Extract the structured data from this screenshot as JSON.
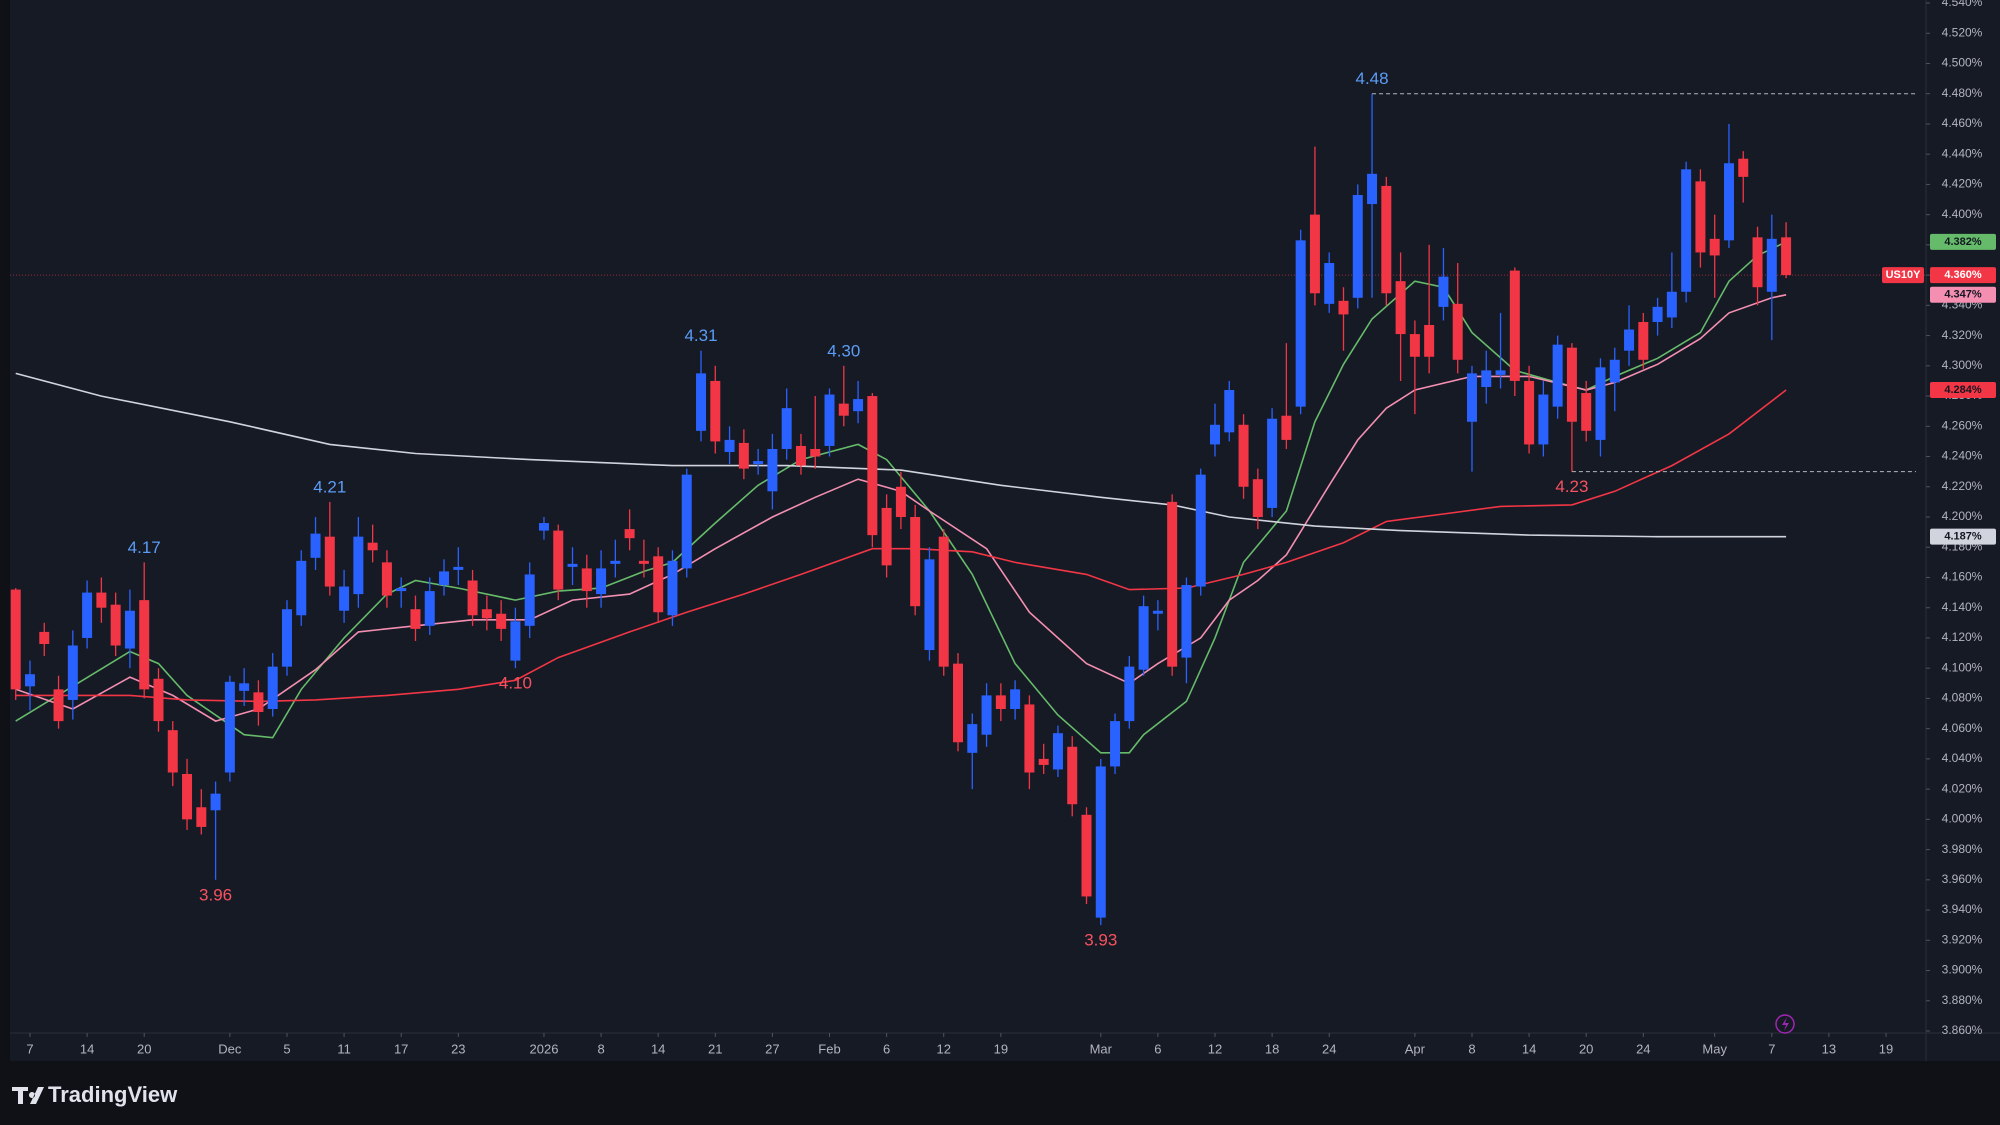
{
  "chart_data": {
    "type": "candlestick",
    "symbol": "US10Y",
    "up_color": "#2962ff",
    "down_color": "#f23645",
    "last_label": "4.360%",
    "open": [
      4.152,
      4.088,
      4.124,
      4.086,
      4.079,
      4.12,
      4.15,
      4.142,
      4.113,
      4.145,
      4.093,
      4.059,
      4.03,
      4.008,
      4.006,
      4.031,
      4.085,
      4.084,
      4.073,
      4.101,
      4.135,
      4.173,
      4.187,
      4.138,
      4.149,
      4.183,
      4.17,
      4.151,
      4.139,
      4.128,
      4.155,
      4.165,
      4.158,
      4.139,
      4.136,
      4.105,
      4.128,
      4.191,
      4.191,
      4.167,
      4.166,
      4.149,
      4.169,
      4.192,
      4.171,
      4.174,
      4.135,
      4.166,
      4.257,
      4.29,
      4.243,
      4.249,
      4.235,
      4.217,
      4.245,
      4.247,
      4.245,
      4.247,
      4.275,
      4.27,
      4.28,
      4.206,
      4.22,
      4.2,
      4.112,
      4.187,
      4.103,
      4.044,
      4.056,
      4.082,
      4.073,
      4.076,
      4.04,
      4.033,
      4.048,
      4.003,
      3.935,
      4.035,
      4.065,
      4.099,
      4.136,
      4.21,
      4.107,
      4.154,
      4.248,
      4.256,
      4.261,
      4.225,
      4.206,
      4.267,
      4.273,
      4.4,
      4.341,
      4.343,
      4.345,
      4.407,
      4.419,
      4.356,
      4.321,
      4.327,
      4.339,
      4.341,
      4.263,
      4.286,
      4.294,
      4.363,
      4.29,
      4.248,
      4.273,
      4.312,
      4.282,
      4.251,
      4.289,
      4.31,
      4.329,
      4.329,
      4.332,
      4.349,
      4.422,
      4.384,
      4.383,
      4.437,
      4.385,
      4.349,
      4.385
    ],
    "high": [
      4.153,
      4.105,
      4.13,
      4.095,
      4.125,
      4.158,
      4.16,
      4.15,
      4.152,
      4.17,
      4.1,
      4.065,
      4.04,
      4.02,
      4.025,
      4.095,
      4.1,
      4.092,
      4.11,
      4.145,
      4.178,
      4.2,
      4.21,
      4.165,
      4.2,
      4.195,
      4.178,
      4.16,
      4.148,
      4.16,
      4.172,
      4.18,
      4.165,
      4.148,
      4.145,
      4.14,
      4.17,
      4.2,
      4.195,
      4.18,
      4.175,
      4.178,
      4.185,
      4.205,
      4.185,
      4.18,
      4.178,
      4.232,
      4.31,
      4.3,
      4.26,
      4.258,
      4.245,
      4.255,
      4.285,
      4.255,
      4.28,
      4.285,
      4.3,
      4.29,
      4.282,
      4.215,
      4.23,
      4.208,
      4.18,
      4.192,
      4.11,
      4.07,
      4.09,
      4.09,
      4.092,
      4.082,
      4.05,
      4.062,
      4.055,
      4.008,
      4.04,
      4.07,
      4.108,
      4.148,
      4.145,
      4.215,
      4.16,
      4.232,
      4.275,
      4.29,
      4.268,
      4.232,
      4.272,
      4.315,
      4.39,
      4.445,
      4.375,
      4.352,
      4.42,
      4.48,
      4.425,
      4.375,
      4.33,
      4.38,
      4.378,
      4.368,
      4.3,
      4.31,
      4.335,
      4.365,
      4.3,
      4.29,
      4.32,
      4.315,
      4.29,
      4.305,
      4.312,
      4.34,
      4.335,
      4.345,
      4.375,
      4.435,
      4.43,
      4.4,
      4.46,
      4.442,
      4.392,
      4.4,
      4.395
    ],
    "low": [
      4.079,
      4.072,
      4.108,
      4.06,
      4.066,
      4.113,
      4.13,
      4.108,
      4.1,
      4.08,
      4.058,
      4.022,
      3.993,
      3.99,
      3.96,
      4.025,
      4.075,
      4.062,
      4.068,
      4.095,
      4.128,
      4.165,
      4.148,
      4.13,
      4.14,
      4.17,
      4.14,
      4.14,
      4.118,
      4.122,
      4.148,
      4.155,
      4.128,
      4.125,
      4.118,
      4.1,
      4.12,
      4.185,
      4.145,
      4.155,
      4.14,
      4.14,
      4.16,
      4.178,
      4.16,
      4.13,
      4.128,
      4.16,
      4.25,
      4.242,
      4.235,
      4.225,
      4.228,
      4.205,
      4.238,
      4.228,
      4.232,
      4.24,
      4.26,
      4.262,
      4.18,
      4.16,
      4.192,
      4.135,
      4.105,
      4.095,
      4.045,
      4.02,
      4.048,
      4.065,
      4.066,
      4.02,
      4.03,
      4.028,
      4.002,
      3.944,
      3.93,
      4.03,
      4.06,
      4.095,
      4.125,
      4.095,
      4.09,
      4.148,
      4.24,
      4.25,
      4.212,
      4.192,
      4.2,
      4.245,
      4.268,
      4.34,
      4.335,
      4.31,
      4.338,
      4.345,
      4.34,
      4.29,
      4.268,
      4.295,
      4.33,
      4.295,
      4.23,
      4.275,
      4.285,
      4.28,
      4.242,
      4.24,
      4.265,
      4.23,
      4.25,
      4.24,
      4.27,
      4.3,
      4.298,
      4.32,
      4.325,
      4.342,
      4.365,
      4.345,
      4.378,
      4.408,
      4.34,
      4.317,
      4.358
    ],
    "close": [
      4.086,
      4.096,
      4.116,
      4.065,
      4.115,
      4.15,
      4.14,
      4.115,
      4.138,
      4.086,
      4.065,
      4.031,
      4.0,
      3.995,
      4.017,
      4.091,
      4.09,
      4.071,
      4.101,
      4.139,
      4.171,
      4.189,
      4.154,
      4.154,
      4.187,
      4.178,
      4.148,
      4.153,
      4.126,
      4.151,
      4.164,
      4.167,
      4.135,
      4.133,
      4.126,
      4.131,
      4.162,
      4.196,
      4.152,
      4.169,
      4.151,
      4.166,
      4.171,
      4.186,
      4.169,
      4.137,
      4.171,
      4.228,
      4.295,
      4.25,
      4.251,
      4.232,
      4.237,
      4.245,
      4.272,
      4.234,
      4.24,
      4.281,
      4.267,
      4.278,
      4.188,
      4.168,
      4.2,
      4.141,
      4.172,
      4.101,
      4.051,
      4.063,
      4.082,
      4.073,
      4.086,
      4.031,
      4.036,
      4.057,
      4.01,
      3.949,
      4.035,
      4.065,
      4.101,
      4.141,
      4.138,
      4.101,
      4.155,
      4.228,
      4.261,
      4.284,
      4.22,
      4.2,
      4.265,
      4.251,
      4.383,
      4.348,
      4.368,
      4.334,
      4.413,
      4.427,
      4.348,
      4.321,
      4.306,
      4.306,
      4.359,
      4.304,
      4.295,
      4.297,
      4.297,
      4.29,
      4.248,
      4.281,
      4.314,
      4.263,
      4.257,
      4.299,
      4.304,
      4.324,
      4.304,
      4.339,
      4.349,
      4.43,
      4.375,
      4.373,
      4.434,
      4.425,
      4.352,
      4.384,
      4.36
    ],
    "series": [
      {
        "color": "#66bb6a",
        "last_label": "4.382%",
        "x": [
          0,
          8,
          10,
          12,
          16,
          18,
          20,
          23,
          26,
          28,
          31,
          35,
          38,
          41,
          44,
          46,
          49,
          52,
          55,
          59,
          61,
          64,
          67,
          70,
          73,
          76,
          78,
          79,
          82,
          84,
          86,
          89,
          91,
          93,
          95,
          98,
          100,
          102,
          105,
          108,
          110,
          112,
          115,
          118,
          120,
          122,
          124
        ],
        "values": [
          4.065,
          4.111,
          4.103,
          4.082,
          4.056,
          4.054,
          4.086,
          4.12,
          4.149,
          4.158,
          4.153,
          4.145,
          4.151,
          4.153,
          4.164,
          4.17,
          4.196,
          4.221,
          4.238,
          4.248,
          4.238,
          4.204,
          4.162,
          4.103,
          4.069,
          4.044,
          4.044,
          4.056,
          4.078,
          4.12,
          4.17,
          4.204,
          4.263,
          4.301,
          4.331,
          4.356,
          4.352,
          4.322,
          4.297,
          4.289,
          4.284,
          4.293,
          4.305,
          4.322,
          4.356,
          4.373,
          4.382
        ]
      },
      {
        "color": "#f48fb1",
        "last_label": "4.347%",
        "x": [
          0,
          4,
          8,
          11,
          14,
          17,
          21,
          24,
          28,
          32,
          36,
          39,
          43,
          46,
          49,
          53,
          56,
          59,
          62,
          64,
          68,
          71,
          75,
          78,
          80,
          83,
          85,
          87,
          89,
          92,
          94,
          96,
          98,
          102,
          106,
          110,
          112,
          115,
          118,
          120,
          123,
          124
        ],
        "values": [
          4.086,
          4.073,
          4.094,
          4.082,
          4.065,
          4.073,
          4.099,
          4.124,
          4.128,
          4.132,
          4.132,
          4.145,
          4.149,
          4.162,
          4.179,
          4.2,
          4.213,
          4.225,
          4.217,
          4.204,
          4.179,
          4.137,
          4.103,
          4.09,
          4.103,
          4.12,
          4.145,
          4.158,
          4.175,
          4.221,
          4.251,
          4.272,
          4.284,
          4.293,
          4.293,
          4.284,
          4.289,
          4.301,
          4.318,
          4.335,
          4.345,
          4.347
        ]
      },
      {
        "color": "#f23645",
        "last_label": "4.284%",
        "x": [
          0,
          8,
          12,
          17,
          21,
          26,
          31,
          35,
          38,
          43,
          47,
          51,
          55,
          60,
          63,
          67,
          70,
          75,
          78,
          82,
          86,
          89,
          93,
          96,
          100,
          104,
          109,
          112,
          116,
          120,
          124
        ],
        "values": [
          4.082,
          4.082,
          4.079,
          4.078,
          4.079,
          4.082,
          4.086,
          4.092,
          4.107,
          4.124,
          4.137,
          4.149,
          4.162,
          4.179,
          4.179,
          4.177,
          4.17,
          4.162,
          4.152,
          4.153,
          4.162,
          4.17,
          4.183,
          4.197,
          4.202,
          4.207,
          4.208,
          4.217,
          4.234,
          4.255,
          4.284
        ]
      },
      {
        "color": "#d1d4dc",
        "last_label": "4.187%",
        "x": [
          0,
          6,
          15,
          22,
          28,
          36,
          46,
          54,
          62,
          69,
          76,
          81,
          85,
          91,
          97,
          106,
          115,
          124
        ],
        "values": [
          4.295,
          4.28,
          4.263,
          4.248,
          4.242,
          4.238,
          4.234,
          4.234,
          4.231,
          4.221,
          4.213,
          4.208,
          4.2,
          4.194,
          4.191,
          4.188,
          4.187,
          4.187
        ]
      }
    ],
    "annotations": [
      {
        "x": 9,
        "value": 4.17,
        "label": "4.17",
        "side": "high"
      },
      {
        "x": 22,
        "value": 4.21,
        "label": "4.21",
        "side": "high"
      },
      {
        "x": 48,
        "value": 4.31,
        "label": "4.31",
        "side": "high"
      },
      {
        "x": 58,
        "value": 4.3,
        "label": "4.30",
        "side": "high"
      },
      {
        "x": 95,
        "value": 4.48,
        "label": "4.48",
        "side": "high",
        "extend": true
      },
      {
        "x": 14,
        "value": 3.96,
        "label": "3.96",
        "side": "low"
      },
      {
        "x": 35,
        "value": 4.1,
        "label": "4.10",
        "side": "low"
      },
      {
        "x": 76,
        "value": 3.93,
        "label": "3.93",
        "side": "low"
      },
      {
        "x": 109,
        "value": 4.23,
        "label": "4.23",
        "side": "low",
        "extend": true
      }
    ],
    "xlim": [
      -0.4,
      133.8
    ],
    "xticks": [
      {
        "value": 1,
        "label": "7"
      },
      {
        "value": 5,
        "label": "14"
      },
      {
        "value": 9,
        "label": "20"
      },
      {
        "value": 15,
        "label": "Dec"
      },
      {
        "value": 19,
        "label": "5"
      },
      {
        "value": 23,
        "label": "11"
      },
      {
        "value": 27,
        "label": "17"
      },
      {
        "value": 31,
        "label": "23"
      },
      {
        "value": 37,
        "label": "2026"
      },
      {
        "value": 41,
        "label": "8"
      },
      {
        "value": 45,
        "label": "14"
      },
      {
        "value": 49,
        "label": "21"
      },
      {
        "value": 53,
        "label": "27"
      },
      {
        "value": 57,
        "label": "Feb"
      },
      {
        "value": 61,
        "label": "6"
      },
      {
        "value": 65,
        "label": "12"
      },
      {
        "value": 69,
        "label": "19"
      },
      {
        "value": 76,
        "label": "Mar"
      },
      {
        "value": 80,
        "label": "6"
      },
      {
        "value": 84,
        "label": "12"
      },
      {
        "value": 88,
        "label": "18"
      },
      {
        "value": 92,
        "label": "24"
      },
      {
        "value": 98,
        "label": "Apr"
      },
      {
        "value": 102,
        "label": "8"
      },
      {
        "value": 106,
        "label": "14"
      },
      {
        "value": 110,
        "label": "20"
      },
      {
        "value": 114,
        "label": "24"
      },
      {
        "value": 119,
        "label": "May"
      },
      {
        "value": 123,
        "label": "7"
      },
      {
        "value": 127,
        "label": "13"
      },
      {
        "value": 131,
        "label": "19"
      }
    ],
    "ylim": [
      3.86,
      4.54
    ],
    "yticks": [
      {
        "value": 3.86,
        "label": "3.860%"
      },
      {
        "value": 3.88,
        "label": "3.880%"
      },
      {
        "value": 3.9,
        "label": "3.900%"
      },
      {
        "value": 3.92,
        "label": "3.920%"
      },
      {
        "value": 3.94,
        "label": "3.940%"
      },
      {
        "value": 3.96,
        "label": "3.960%"
      },
      {
        "value": 3.98,
        "label": "3.980%"
      },
      {
        "value": 4.0,
        "label": "4.000%"
      },
      {
        "value": 4.02,
        "label": "4.020%"
      },
      {
        "value": 4.04,
        "label": "4.040%"
      },
      {
        "value": 4.06,
        "label": "4.060%"
      },
      {
        "value": 4.08,
        "label": "4.080%"
      },
      {
        "value": 4.1,
        "label": "4.100%"
      },
      {
        "value": 4.12,
        "label": "4.120%"
      },
      {
        "value": 4.14,
        "label": "4.140%"
      },
      {
        "value": 4.16,
        "label": "4.160%"
      },
      {
        "value": 4.18,
        "label": "4.180%"
      },
      {
        "value": 4.2,
        "label": "4.200%"
      },
      {
        "value": 4.22,
        "label": "4.220%"
      },
      {
        "value": 4.24,
        "label": "4.240%"
      },
      {
        "value": 4.26,
        "label": "4.260%"
      },
      {
        "value": 4.28,
        "label": "4.280%"
      },
      {
        "value": 4.3,
        "label": "4.300%"
      },
      {
        "value": 4.32,
        "label": "4.320%"
      },
      {
        "value": 4.34,
        "label": "4.340%"
      },
      {
        "value": 4.36,
        "label": "4.360%"
      },
      {
        "value": 4.38,
        "label": "4.380%"
      },
      {
        "value": 4.4,
        "label": "4.400%"
      },
      {
        "value": 4.42,
        "label": "4.420%"
      },
      {
        "value": 4.44,
        "label": "4.440%"
      },
      {
        "value": 4.46,
        "label": "4.460%"
      },
      {
        "value": 4.48,
        "label": "4.480%"
      },
      {
        "value": 4.5,
        "label": "4.500%"
      },
      {
        "value": 4.52,
        "label": "4.520%"
      },
      {
        "value": 4.54,
        "label": "4.540%"
      }
    ]
  },
  "footer": {
    "brand": "TradingView"
  }
}
